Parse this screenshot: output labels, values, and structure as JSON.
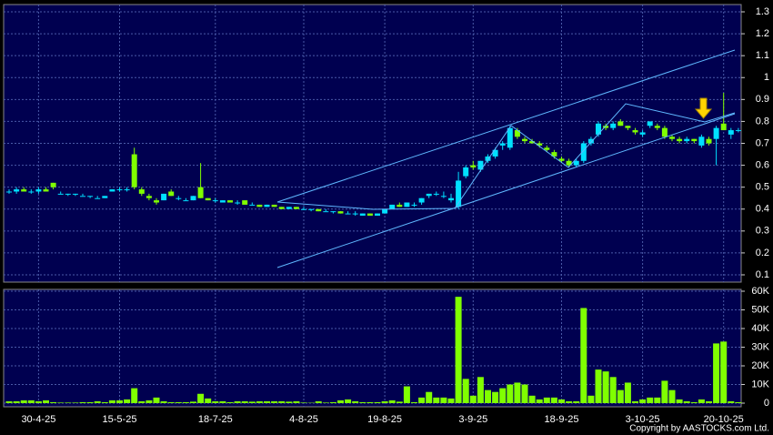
{
  "chart_data": [
    {
      "type": "candlestick",
      "categories": [
        null,
        null,
        null,
        null,
        "30-4-25",
        null,
        null,
        null,
        null,
        null,
        null,
        null,
        null,
        null,
        null,
        "15-5-25",
        null,
        null,
        null,
        null,
        null,
        null,
        null,
        null,
        null,
        null,
        null,
        null,
        "18-7-25",
        null,
        null,
        null,
        null,
        null,
        null,
        null,
        null,
        null,
        null,
        null,
        "4-8-25",
        null,
        null,
        null,
        null,
        null,
        null,
        null,
        null,
        null,
        null,
        "19-8-25",
        null,
        null,
        null,
        null,
        null,
        null,
        null,
        null,
        null,
        null,
        null,
        "3-9-25",
        null,
        null,
        null,
        null,
        null,
        null,
        null,
        null,
        null,
        null,
        null,
        "18-9-25",
        null,
        null,
        null,
        null,
        null,
        null,
        null,
        null,
        null,
        null,
        "3-10-25",
        null,
        null,
        null,
        null,
        null,
        null,
        null,
        null,
        null,
        null,
        "20-10-25",
        null,
        null
      ],
      "ohlc": [
        [
          0.48,
          0.49,
          0.47,
          0.48
        ],
        [
          0.48,
          0.5,
          0.47,
          0.49
        ],
        [
          0.49,
          0.5,
          0.48,
          0.48
        ],
        [
          0.48,
          0.49,
          0.47,
          0.48
        ],
        [
          0.48,
          0.5,
          0.47,
          0.49
        ],
        [
          0.49,
          0.5,
          0.48,
          0.48
        ],
        [
          0.52,
          0.52,
          0.49,
          0.5
        ],
        [
          0.47,
          0.48,
          0.47,
          0.47
        ],
        [
          0.47,
          0.47,
          0.46,
          0.47
        ],
        [
          0.47,
          0.47,
          0.46,
          0.47
        ],
        [
          0.46,
          0.47,
          0.46,
          0.46
        ],
        [
          0.46,
          0.46,
          0.45,
          0.46
        ],
        [
          0.45,
          0.46,
          0.45,
          0.45
        ],
        [
          0.45,
          0.46,
          0.45,
          0.46
        ],
        [
          0.48,
          0.49,
          0.48,
          0.49
        ],
        [
          0.49,
          0.5,
          0.48,
          0.49
        ],
        [
          0.49,
          0.5,
          0.48,
          0.49
        ],
        [
          0.65,
          0.68,
          0.49,
          0.5
        ],
        [
          0.49,
          0.5,
          0.46,
          0.47
        ],
        [
          0.46,
          0.47,
          0.44,
          0.45
        ],
        [
          0.44,
          0.45,
          0.42,
          0.43
        ],
        [
          0.44,
          0.47,
          0.44,
          0.47
        ],
        [
          0.48,
          0.49,
          0.46,
          0.46
        ],
        [
          0.45,
          0.46,
          0.44,
          0.45
        ],
        [
          0.44,
          0.45,
          0.44,
          0.44
        ],
        [
          0.44,
          0.46,
          0.44,
          0.46
        ],
        [
          0.5,
          0.61,
          0.45,
          0.45
        ],
        [
          0.45,
          0.45,
          0.44,
          0.44
        ],
        [
          0.44,
          0.45,
          0.43,
          0.44
        ],
        [
          0.43,
          0.44,
          0.43,
          0.44
        ],
        [
          0.44,
          0.44,
          0.43,
          0.43
        ],
        [
          0.43,
          0.44,
          0.42,
          0.43
        ],
        [
          0.44,
          0.44,
          0.42,
          0.42
        ],
        [
          0.42,
          0.43,
          0.42,
          0.42
        ],
        [
          0.42,
          0.42,
          0.41,
          0.41
        ],
        [
          0.41,
          0.42,
          0.41,
          0.42
        ],
        [
          0.42,
          0.42,
          0.41,
          0.41
        ],
        [
          0.41,
          0.41,
          0.4,
          0.4
        ],
        [
          0.4,
          0.41,
          0.4,
          0.41
        ],
        [
          0.41,
          0.41,
          0.4,
          0.4
        ],
        [
          0.4,
          0.41,
          0.4,
          0.4
        ],
        [
          0.4,
          0.4,
          0.39,
          0.4
        ],
        [
          0.4,
          0.4,
          0.39,
          0.39
        ],
        [
          0.39,
          0.4,
          0.39,
          0.39
        ],
        [
          0.39,
          0.39,
          0.38,
          0.39
        ],
        [
          0.39,
          0.39,
          0.38,
          0.38
        ],
        [
          0.38,
          0.39,
          0.38,
          0.38
        ],
        [
          0.38,
          0.39,
          0.37,
          0.38
        ],
        [
          0.37,
          0.38,
          0.37,
          0.38
        ],
        [
          0.38,
          0.38,
          0.37,
          0.37
        ],
        [
          0.37,
          0.38,
          0.37,
          0.38
        ],
        [
          0.38,
          0.4,
          0.38,
          0.4
        ],
        [
          0.4,
          0.42,
          0.4,
          0.42
        ],
        [
          0.42,
          0.43,
          0.41,
          0.41
        ],
        [
          0.41,
          0.43,
          0.41,
          0.43
        ],
        [
          0.42,
          0.43,
          0.41,
          0.42
        ],
        [
          0.43,
          0.45,
          0.42,
          0.45
        ],
        [
          0.46,
          0.47,
          0.45,
          0.47
        ],
        [
          0.47,
          0.48,
          0.46,
          0.47
        ],
        [
          0.46,
          0.48,
          0.45,
          0.46
        ],
        [
          0.44,
          0.47,
          0.43,
          0.45
        ],
        [
          0.41,
          0.57,
          0.4,
          0.53
        ],
        [
          0.55,
          0.6,
          0.54,
          0.59
        ],
        [
          0.6,
          0.62,
          0.58,
          0.59
        ],
        [
          0.58,
          0.62,
          0.57,
          0.62
        ],
        [
          0.62,
          0.65,
          0.61,
          0.64
        ],
        [
          0.64,
          0.68,
          0.63,
          0.67
        ],
        [
          0.69,
          0.71,
          0.67,
          0.7
        ],
        [
          0.68,
          0.78,
          0.67,
          0.77
        ],
        [
          0.76,
          0.77,
          0.72,
          0.73
        ],
        [
          0.72,
          0.73,
          0.7,
          0.71
        ],
        [
          0.71,
          0.72,
          0.7,
          0.7
        ],
        [
          0.7,
          0.71,
          0.68,
          0.69
        ],
        [
          0.68,
          0.69,
          0.66,
          0.67
        ],
        [
          0.66,
          0.67,
          0.63,
          0.64
        ],
        [
          0.63,
          0.64,
          0.61,
          0.62
        ],
        [
          0.62,
          0.63,
          0.59,
          0.6
        ],
        [
          0.6,
          0.63,
          0.59,
          0.62
        ],
        [
          0.62,
          0.71,
          0.61,
          0.7
        ],
        [
          0.7,
          0.73,
          0.69,
          0.72
        ],
        [
          0.74,
          0.8,
          0.73,
          0.79
        ],
        [
          0.78,
          0.79,
          0.76,
          0.77
        ],
        [
          0.77,
          0.8,
          0.76,
          0.79
        ],
        [
          0.8,
          0.81,
          0.78,
          0.78
        ],
        [
          0.78,
          0.78,
          0.76,
          0.77
        ],
        [
          0.76,
          0.77,
          0.74,
          0.75
        ],
        [
          0.74,
          0.76,
          0.73,
          0.75
        ],
        [
          0.78,
          0.8,
          0.77,
          0.8
        ],
        [
          0.78,
          0.79,
          0.76,
          0.77
        ],
        [
          0.77,
          0.78,
          0.72,
          0.73
        ],
        [
          0.73,
          0.74,
          0.71,
          0.72
        ],
        [
          0.72,
          0.73,
          0.7,
          0.71
        ],
        [
          0.71,
          0.73,
          0.7,
          0.72
        ],
        [
          0.72,
          0.72,
          0.7,
          0.71
        ],
        [
          0.69,
          0.74,
          0.68,
          0.73
        ],
        [
          0.72,
          0.73,
          0.69,
          0.7
        ],
        [
          0.72,
          0.78,
          0.6,
          0.77
        ],
        [
          0.79,
          0.93,
          0.76,
          0.76
        ],
        [
          0.74,
          0.77,
          0.72,
          0.76
        ],
        [
          0.76,
          0.77,
          0.75,
          0.76
        ]
      ],
      "up_color": "#00e0ff",
      "down_color": "#80ff00",
      "ylim": [
        0.1,
        1.3
      ],
      "yticks": [
        0.1,
        0.2,
        0.3,
        0.4,
        0.5,
        0.6,
        0.7,
        0.8,
        0.9,
        1,
        1.1,
        1.2,
        1.3
      ],
      "grid": true
    },
    {
      "type": "bar",
      "values": [
        1000,
        1000,
        1500,
        1500,
        1000,
        1500,
        500,
        300,
        300,
        300,
        500,
        500,
        1000,
        500,
        1500,
        1500,
        2000,
        8000,
        1000,
        1500,
        3000,
        1000,
        500,
        500,
        500,
        800,
        5000,
        2500,
        1000,
        1000,
        500,
        1000,
        1000,
        800,
        1000,
        1000,
        1000,
        1000,
        800,
        1000,
        300,
        200,
        1000,
        300,
        500,
        1500,
        2000,
        1000,
        500,
        500,
        500,
        1000,
        1500,
        800,
        9000,
        500,
        3000,
        6000,
        3000,
        3000,
        2500,
        57000,
        13000,
        4000,
        14000,
        7000,
        6000,
        8000,
        10000,
        11000,
        10000,
        4000,
        2000,
        3000,
        3000,
        2000,
        1000,
        1000,
        51000,
        4000,
        18000,
        17000,
        14000,
        7000,
        11000,
        1000,
        2000,
        3000,
        3000,
        12000,
        7000,
        2000,
        1000,
        500,
        2000,
        1000,
        32000,
        33000,
        1000,
        500
      ],
      "color": "#80ff00",
      "ylim": [
        0,
        60000
      ],
      "yticks": [
        0,
        {
          "value": 10000,
          "label": "10K"
        },
        {
          "value": 20000,
          "label": "20K"
        },
        {
          "value": 30000,
          "label": "30K"
        },
        {
          "value": 40000,
          "label": "40K"
        },
        {
          "value": 50000,
          "label": "50K"
        },
        {
          "value": 60000,
          "label": "60K"
        }
      ],
      "grid": true
    }
  ],
  "copyright": "Copyright by AASTOCKS.com Ltd."
}
